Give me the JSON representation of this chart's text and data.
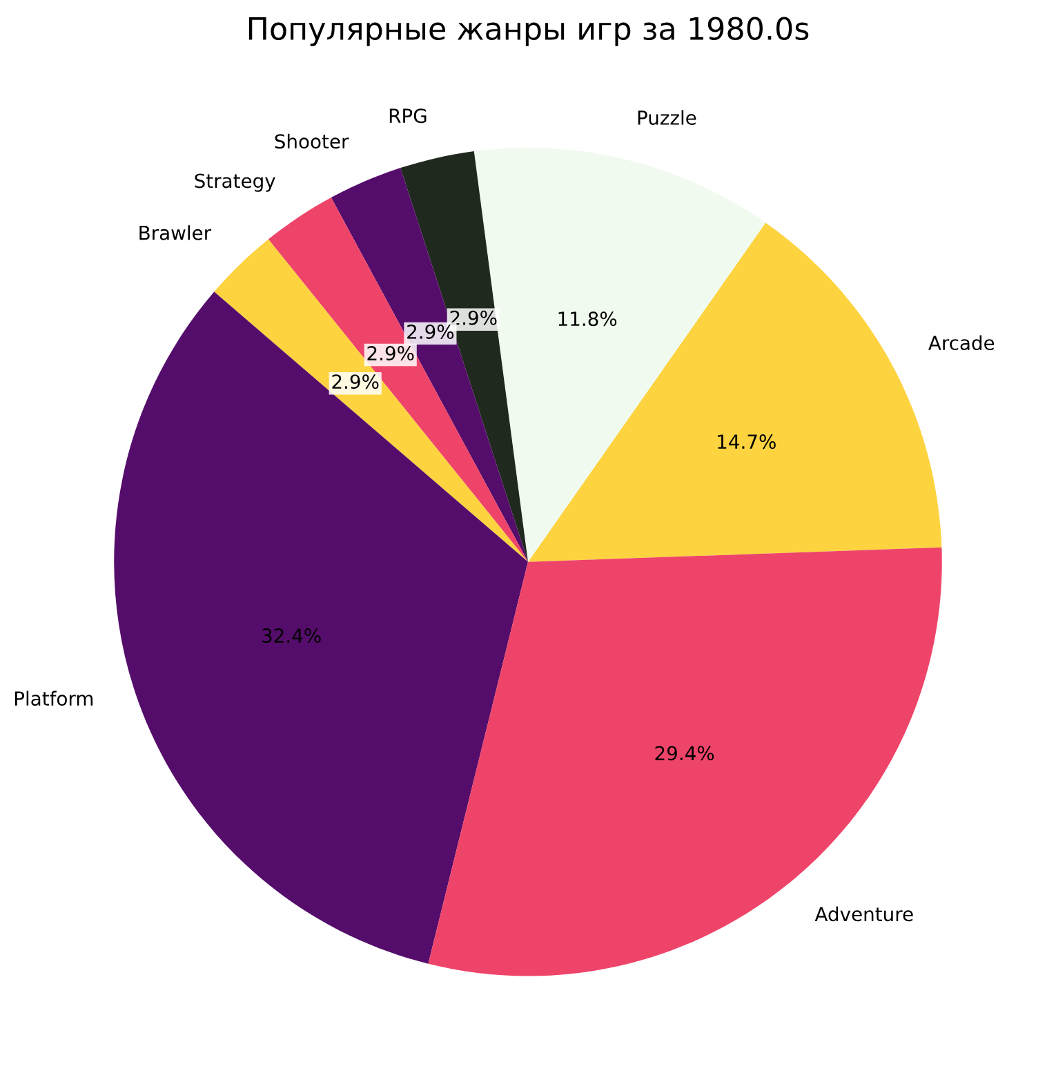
{
  "chart_data": {
    "type": "pie",
    "title": "Популярные жанры игр за 1980.0s",
    "categories": [
      "Arcade",
      "Puzzle",
      "RPG",
      "Shooter",
      "Strategy",
      "Brawler",
      "Platform",
      "Adventure"
    ],
    "values": [
      14.7,
      11.8,
      2.9,
      2.9,
      2.9,
      2.9,
      32.4,
      29.4
    ],
    "value_labels": [
      "14.7%",
      "11.8%",
      "2.9%",
      "2.9%",
      "2.9%",
      "2.9%",
      "32.4%",
      "29.4%"
    ],
    "colors": [
      "#fed340",
      "#f1faee",
      "#20291e",
      "#550d6b",
      "#ef4469",
      "#fed340",
      "#550d6b",
      "#ef4469"
    ],
    "legend": false
  }
}
